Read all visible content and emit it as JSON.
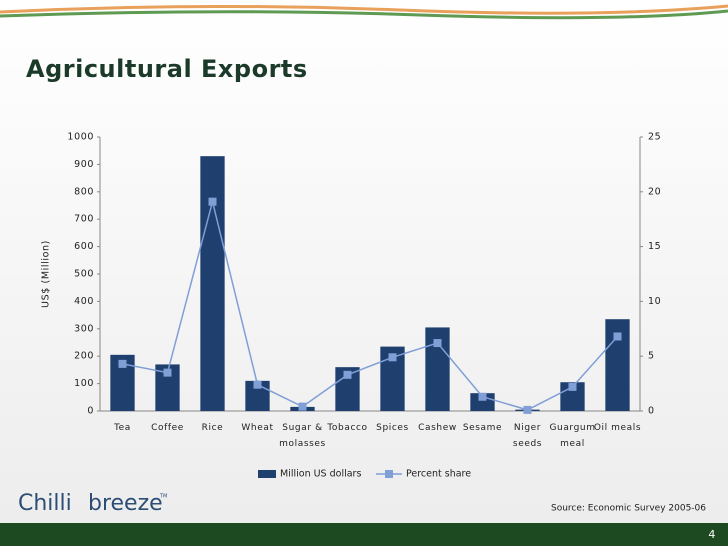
{
  "chart_data": {
    "type": "bar_line",
    "title": "Agricultural Exports",
    "y_label": "US$ (Million)",
    "categories": [
      "Tea",
      "Coffee",
      "Rice",
      "Wheat",
      "Sugar & molasses",
      "Tobacco",
      "Spices",
      "Cashew",
      "Sesame",
      "Niger seeds",
      "Guargum meal",
      "Oil meals"
    ],
    "series": [
      {
        "name": "Million US dollars",
        "type": "bar",
        "color": "#1f3f6e",
        "values": [
          205,
          170,
          930,
          110,
          15,
          160,
          235,
          305,
          65,
          5,
          105,
          335
        ]
      },
      {
        "name": "Percent share",
        "type": "line",
        "axis": "y2",
        "color": "#7f9fd6",
        "values": [
          4.3,
          3.5,
          19.1,
          2.4,
          0.4,
          3.3,
          4.9,
          6.2,
          1.3,
          0.1,
          2.2,
          6.8
        ]
      }
    ],
    "ylim": [
      0,
      1000
    ],
    "yticks": [
      0,
      100,
      200,
      300,
      400,
      500,
      600,
      700,
      800,
      900,
      1000
    ],
    "y2lim": [
      0,
      25
    ],
    "y2ticks": [
      0,
      5,
      10,
      15,
      20,
      25
    ],
    "legend": "bottom",
    "source": "Source: Economic Survey 2005-06"
  },
  "logo": {
    "left": "Chilli",
    "right": "breeze",
    "mark": "TM"
  },
  "page_number": "4"
}
